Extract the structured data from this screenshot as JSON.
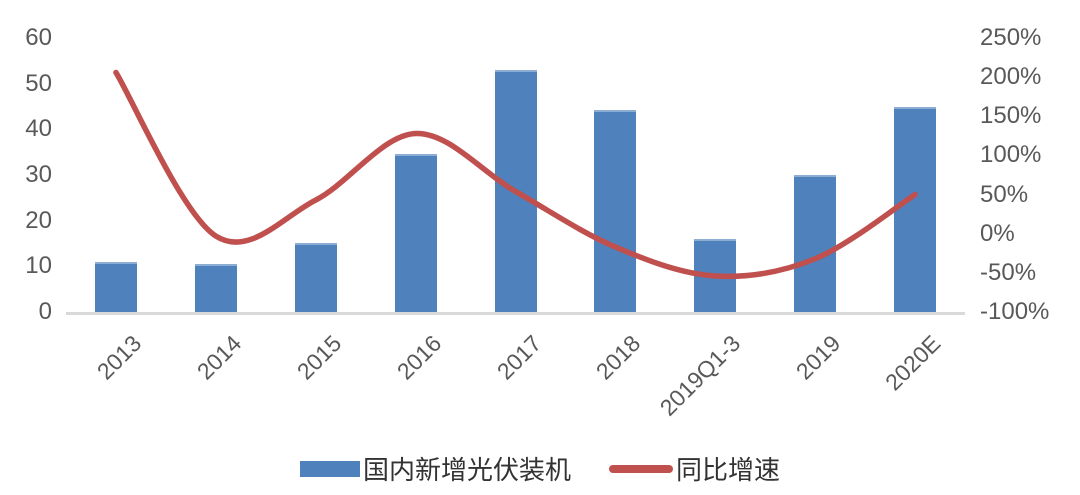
{
  "chart_data": {
    "type": "combo",
    "title": "",
    "categories": [
      "2013",
      "2014",
      "2015",
      "2016",
      "2017",
      "2018",
      "2019Q1-3",
      "2019",
      "2020E"
    ],
    "series": [
      {
        "name": "国内新增光伏装机",
        "type": "bar",
        "axis": "left",
        "color": "#4F81BD",
        "values": [
          10.95,
          10.6,
          15.1,
          34.5,
          53.1,
          44.3,
          16.0,
          30.1,
          45.0
        ]
      },
      {
        "name": "同比增速",
        "type": "line",
        "axis": "right",
        "color": "#C0504D",
        "unit": "%",
        "values": [
          206,
          -3,
          43,
          128,
          54,
          -17,
          -54,
          -32,
          50
        ]
      }
    ],
    "left_axis": {
      "min": 0,
      "max": 60,
      "ticks": [
        60,
        50,
        40,
        30,
        20,
        10,
        0
      ]
    },
    "right_axis": {
      "min": -100,
      "max": 250,
      "suffix": "%",
      "ticks": [
        250,
        200,
        150,
        100,
        50,
        0,
        -50,
        -100
      ]
    },
    "grid": false,
    "legend_position": "bottom",
    "colors": {
      "bar": "#4F81BD",
      "line": "#C0504D",
      "axis_line": "#D9D9D9",
      "tick_text": "#595959",
      "legend_text": "#333333"
    }
  }
}
